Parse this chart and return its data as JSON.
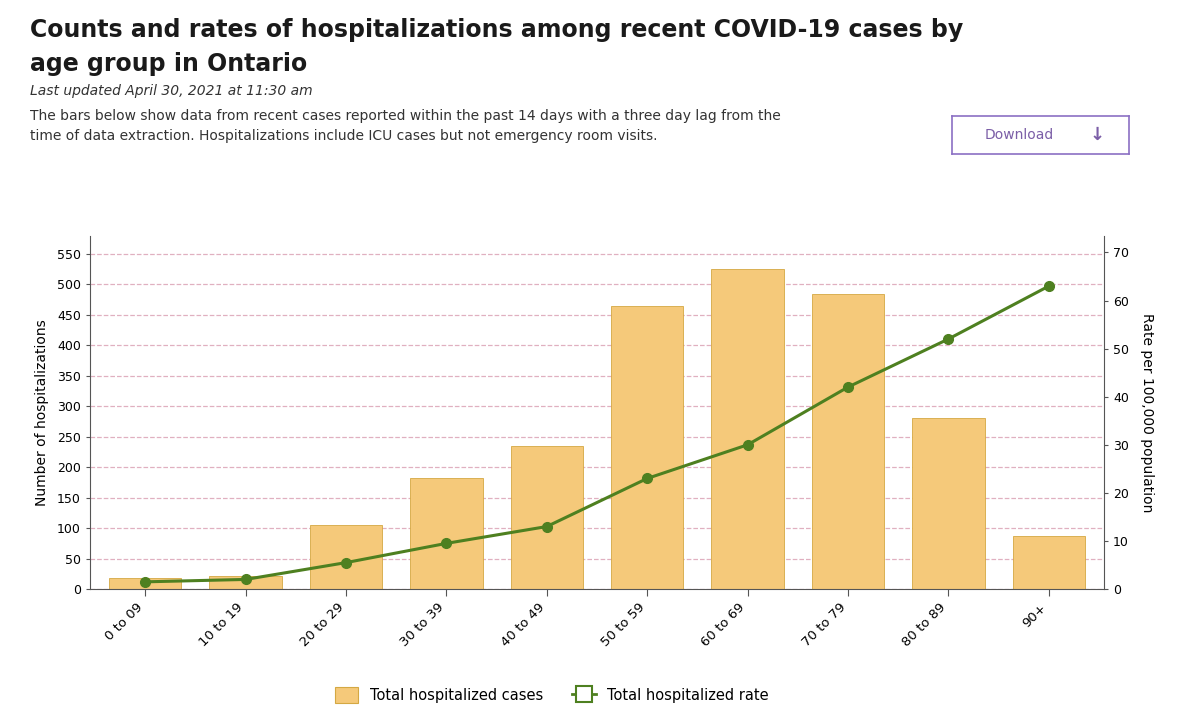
{
  "title_line1": "Counts and rates of hospitalizations among recent COVID-19 cases by",
  "title_line2": "age group in Ontario",
  "subtitle": "Last updated April 30, 2021 at 11:30 am",
  "description_line1": "The bars below show data from recent cases reported within the past 14 days with a three day lag from the",
  "description_line2": "time of data extraction. Hospitalizations include ICU cases but not emergency room visits.",
  "categories": [
    "0 to 09",
    "10 to 19",
    "20 to 29",
    "30 to 39",
    "40 to 49",
    "50 to 59",
    "60 to 69",
    "70 to 79",
    "80 to 89",
    "90+"
  ],
  "bar_values": [
    18,
    22,
    105,
    183,
    234,
    464,
    525,
    484,
    280,
    87
  ],
  "rate_values": [
    1.5,
    2.0,
    5.5,
    9.5,
    13.0,
    23.0,
    30.0,
    42.0,
    52.0,
    63.0
  ],
  "bar_color": "#F5C97A",
  "bar_edge_color": "#D4A843",
  "line_color": "#4E8020",
  "left_ylabel": "Number of hospitalizations",
  "right_ylabel": "Rate per 100,000 population",
  "left_ylim": [
    0,
    580
  ],
  "right_ylim": [
    0,
    73.5
  ],
  "left_yticks": [
    0,
    50,
    100,
    150,
    200,
    250,
    300,
    350,
    400,
    450,
    500,
    550
  ],
  "right_yticks": [
    0.0,
    10.0,
    20.0,
    30.0,
    40.0,
    50.0,
    60.0,
    70.0
  ],
  "grid_color": "#E0B0C0",
  "background_color": "#FFFFFF",
  "legend_bar_label": "Total hospitalized cases",
  "legend_line_label": "Total hospitalized rate",
  "title_fontsize": 17,
  "subtitle_fontsize": 10,
  "desc_fontsize": 10
}
